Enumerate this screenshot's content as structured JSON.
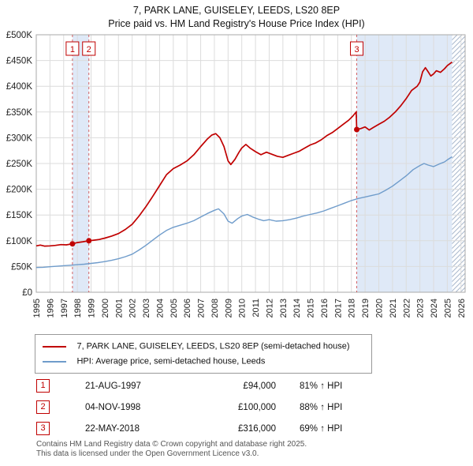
{
  "chart_data": {
    "type": "line",
    "title": "7, PARK LANE, GUISELEY, LEEDS, LS20 8EP",
    "subtitle": "Price paid vs. HM Land Registry's House Price Index (HPI)",
    "x_range": [
      1995,
      2026.3
    ],
    "y_range": [
      0,
      500000
    ],
    "x_ticks": [
      1995,
      1996,
      1997,
      1998,
      1999,
      2000,
      2001,
      2002,
      2003,
      2004,
      2005,
      2006,
      2007,
      2008,
      2009,
      2010,
      2011,
      2012,
      2013,
      2014,
      2015,
      2016,
      2017,
      2018,
      2019,
      2020,
      2021,
      2022,
      2023,
      2024,
      2025,
      2026
    ],
    "y_ticks": [
      0,
      50000,
      100000,
      150000,
      200000,
      250000,
      300000,
      350000,
      400000,
      450000,
      500000
    ],
    "y_tick_labels": [
      "£0",
      "£50K",
      "£100K",
      "£150K",
      "£200K",
      "£250K",
      "£300K",
      "£350K",
      "£400K",
      "£450K",
      "£500K"
    ],
    "grid": true,
    "legend_position": "below",
    "colors": {
      "property": "#c00000",
      "hpi": "#6f9ccb",
      "band": "#dfe9f7",
      "hatch": "#a9b8cc",
      "grid": "#dcdcdc"
    },
    "series": [
      {
        "name": "7, PARK LANE, GUISELEY, LEEDS, LS20 8EP (semi-detached house)",
        "color": "#c00000",
        "points": [
          [
            1995,
            90000
          ],
          [
            1995.3,
            91500
          ],
          [
            1995.6,
            89500
          ],
          [
            1996,
            90000
          ],
          [
            1996.4,
            91000
          ],
          [
            1996.8,
            92500
          ],
          [
            1997.2,
            92000
          ],
          [
            1997.64,
            94000
          ],
          [
            1998,
            96500
          ],
          [
            1998.4,
            98000
          ],
          [
            1998.84,
            100000
          ],
          [
            1999.2,
            101000
          ],
          [
            1999.6,
            102500
          ],
          [
            2000,
            105000
          ],
          [
            2000.5,
            109000
          ],
          [
            2001,
            114000
          ],
          [
            2001.5,
            122000
          ],
          [
            2002,
            132000
          ],
          [
            2002.5,
            148000
          ],
          [
            2003,
            166000
          ],
          [
            2003.5,
            186000
          ],
          [
            2004,
            207000
          ],
          [
            2004.5,
            228000
          ],
          [
            2005,
            240000
          ],
          [
            2005.5,
            247000
          ],
          [
            2006,
            255000
          ],
          [
            2006.5,
            267000
          ],
          [
            2007,
            283000
          ],
          [
            2007.5,
            298000
          ],
          [
            2007.8,
            305000
          ],
          [
            2008.1,
            308000
          ],
          [
            2008.4,
            300000
          ],
          [
            2008.7,
            283000
          ],
          [
            2009,
            255000
          ],
          [
            2009.2,
            248000
          ],
          [
            2009.5,
            258000
          ],
          [
            2009.8,
            272000
          ],
          [
            2010,
            280000
          ],
          [
            2010.3,
            287000
          ],
          [
            2010.6,
            280000
          ],
          [
            2011,
            273000
          ],
          [
            2011.4,
            267000
          ],
          [
            2011.8,
            272000
          ],
          [
            2012.2,
            268000
          ],
          [
            2012.6,
            264000
          ],
          [
            2013,
            262000
          ],
          [
            2013.4,
            266000
          ],
          [
            2013.8,
            270000
          ],
          [
            2014.2,
            274000
          ],
          [
            2014.6,
            280000
          ],
          [
            2015,
            286000
          ],
          [
            2015.4,
            290000
          ],
          [
            2015.8,
            296000
          ],
          [
            2016.2,
            304000
          ],
          [
            2016.6,
            310000
          ],
          [
            2017,
            318000
          ],
          [
            2017.4,
            326000
          ],
          [
            2017.8,
            334000
          ],
          [
            2018.1,
            342000
          ],
          [
            2018.35,
            350000
          ],
          [
            2018.39,
            316000
          ],
          [
            2018.7,
            318000
          ],
          [
            2019,
            321000
          ],
          [
            2019.3,
            315000
          ],
          [
            2019.6,
            320000
          ],
          [
            2020,
            326000
          ],
          [
            2020.4,
            332000
          ],
          [
            2020.8,
            340000
          ],
          [
            2021.2,
            350000
          ],
          [
            2021.6,
            362000
          ],
          [
            2022,
            376000
          ],
          [
            2022.4,
            392000
          ],
          [
            2022.8,
            400000
          ],
          [
            2023,
            408000
          ],
          [
            2023.2,
            428000
          ],
          [
            2023.4,
            436000
          ],
          [
            2023.6,
            428000
          ],
          [
            2023.8,
            420000
          ],
          [
            2024,
            424000
          ],
          [
            2024.2,
            430000
          ],
          [
            2024.5,
            427000
          ],
          [
            2024.8,
            434000
          ],
          [
            2025,
            440000
          ],
          [
            2025.35,
            447000
          ]
        ]
      },
      {
        "name": "HPI: Average price, semi-detached house, Leeds",
        "color": "#6f9ccb",
        "points": [
          [
            1995,
            48000
          ],
          [
            1995.5,
            48500
          ],
          [
            1996,
            49500
          ],
          [
            1996.5,
            50500
          ],
          [
            1997,
            51500
          ],
          [
            1997.5,
            52500
          ],
          [
            1998,
            53500
          ],
          [
            1998.5,
            54500
          ],
          [
            1999,
            56000
          ],
          [
            1999.5,
            57500
          ],
          [
            2000,
            59500
          ],
          [
            2000.5,
            62000
          ],
          [
            2001,
            65000
          ],
          [
            2001.5,
            69000
          ],
          [
            2002,
            74000
          ],
          [
            2002.5,
            82000
          ],
          [
            2003,
            91000
          ],
          [
            2003.5,
            101000
          ],
          [
            2004,
            111000
          ],
          [
            2004.5,
            120000
          ],
          [
            2005,
            126000
          ],
          [
            2005.5,
            130000
          ],
          [
            2006,
            134000
          ],
          [
            2006.5,
            139000
          ],
          [
            2007,
            146000
          ],
          [
            2007.5,
            153000
          ],
          [
            2008,
            159000
          ],
          [
            2008.3,
            162000
          ],
          [
            2008.7,
            152000
          ],
          [
            2009,
            138000
          ],
          [
            2009.3,
            134000
          ],
          [
            2009.7,
            143000
          ],
          [
            2010,
            148000
          ],
          [
            2010.4,
            151000
          ],
          [
            2010.8,
            146000
          ],
          [
            2011.2,
            142000
          ],
          [
            2011.6,
            139000
          ],
          [
            2012,
            141000
          ],
          [
            2012.5,
            138000
          ],
          [
            2013,
            139000
          ],
          [
            2013.5,
            141000
          ],
          [
            2014,
            144000
          ],
          [
            2014.5,
            148000
          ],
          [
            2015,
            151000
          ],
          [
            2015.5,
            154000
          ],
          [
            2016,
            158000
          ],
          [
            2016.5,
            163000
          ],
          [
            2017,
            168000
          ],
          [
            2017.5,
            173000
          ],
          [
            2018,
            178000
          ],
          [
            2018.5,
            182000
          ],
          [
            2019,
            185000
          ],
          [
            2019.5,
            188000
          ],
          [
            2020,
            191000
          ],
          [
            2020.5,
            198000
          ],
          [
            2021,
            206000
          ],
          [
            2021.5,
            216000
          ],
          [
            2022,
            226000
          ],
          [
            2022.5,
            238000
          ],
          [
            2023,
            246000
          ],
          [
            2023.3,
            250000
          ],
          [
            2023.6,
            247000
          ],
          [
            2024,
            244000
          ],
          [
            2024.4,
            249000
          ],
          [
            2024.8,
            253000
          ],
          [
            2025,
            257000
          ],
          [
            2025.35,
            263000
          ]
        ]
      }
    ],
    "sales": [
      {
        "label": "1",
        "x": 1997.64,
        "y": 94000,
        "date": "21-AUG-1997",
        "price": "£94,000",
        "hpi": "81% ↑ HPI"
      },
      {
        "label": "2",
        "x": 1998.84,
        "y": 100000,
        "date": "04-NOV-1998",
        "price": "£100,000",
        "hpi": "88% ↑ HPI"
      },
      {
        "label": "3",
        "x": 2018.39,
        "y": 316000,
        "date": "22-MAY-2018",
        "price": "£316,000",
        "hpi": "69% ↑ HPI"
      }
    ],
    "bands": [
      [
        1997.64,
        1998.84
      ],
      [
        2018.39,
        2025.35
      ]
    ],
    "hatch": [
      2025.35,
      2026.3
    ]
  },
  "footer": {
    "line1": "Contains HM Land Registry data © Crown copyright and database right 2025.",
    "line2": "This data is licensed under the Open Government Licence v3.0."
  }
}
